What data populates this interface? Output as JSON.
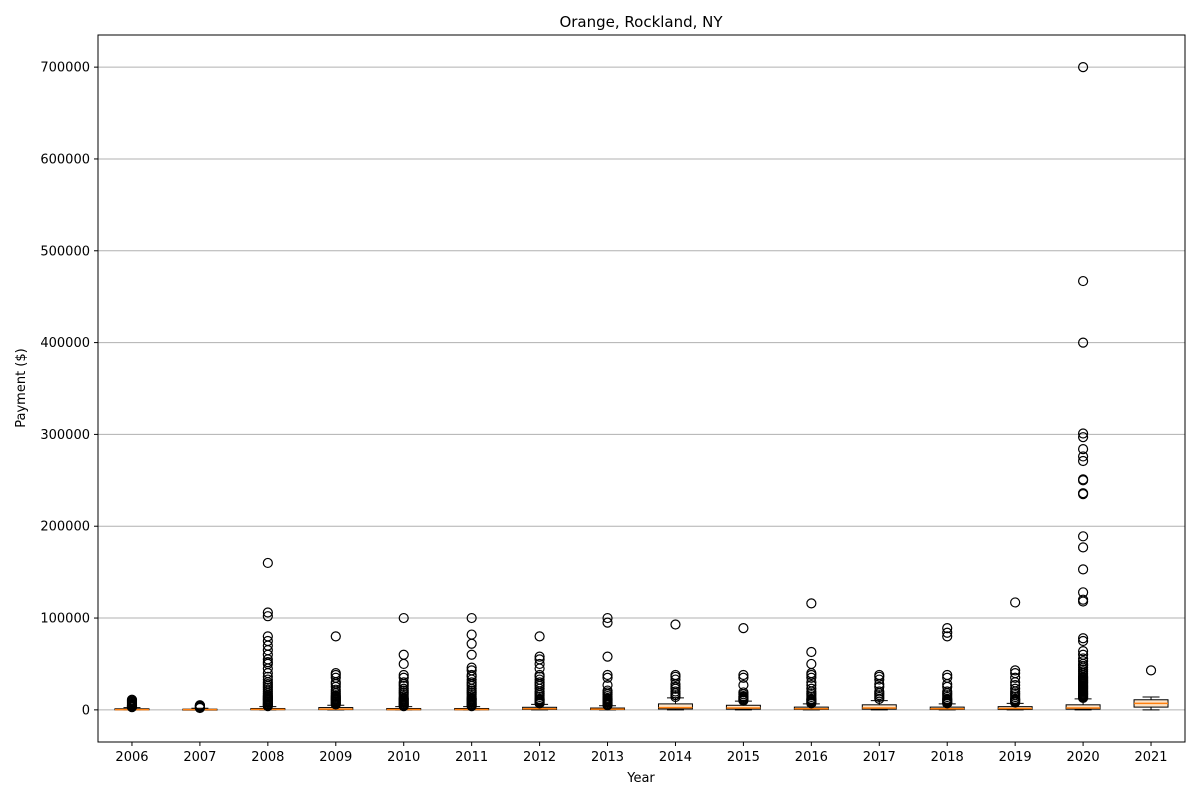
{
  "chart_data": {
    "type": "box",
    "title": "Orange, Rockland, NY",
    "xlabel": "Year",
    "ylabel": "Payment ($)",
    "ylim": [
      -35000,
      735000
    ],
    "grid": "y",
    "y_ticks": [
      0,
      100000,
      200000,
      300000,
      400000,
      500000,
      600000,
      700000
    ],
    "y_tick_labels": [
      "0",
      "100000",
      "200000",
      "300000",
      "400000",
      "500000",
      "600000",
      "700000"
    ],
    "categories": [
      "2006",
      "2007",
      "2008",
      "2009",
      "2010",
      "2011",
      "2012",
      "2013",
      "2014",
      "2015",
      "2016",
      "2017",
      "2018",
      "2019",
      "2020",
      "2021"
    ],
    "boxes": [
      {
        "year": "2006",
        "whisker_low": 0,
        "q1": 100,
        "median": 300,
        "q3": 1200,
        "whisker_high": 2500,
        "outliers": [
          3000,
          3500,
          4000,
          4500,
          5000,
          6000,
          7000,
          8000,
          9000,
          10000,
          11000
        ]
      },
      {
        "year": "2007",
        "whisker_low": 0,
        "q1": 100,
        "median": 300,
        "q3": 800,
        "whisker_high": 1800,
        "outliers": [
          2000,
          2500,
          3000,
          3500,
          4000,
          4500,
          5000
        ]
      },
      {
        "year": "2008",
        "whisker_low": 0,
        "q1": 200,
        "median": 500,
        "q3": 1500,
        "whisker_high": 3500,
        "outliers": [
          4000,
          5000,
          6000,
          7000,
          8000,
          9000,
          10000,
          11000,
          12000,
          13000,
          14000,
          15000,
          16000,
          18000,
          20000,
          22000,
          24000,
          26000,
          28000,
          30000,
          33000,
          36000,
          40000,
          45000,
          50000,
          52000,
          55000,
          60000,
          65000,
          70000,
          75000,
          80000,
          102000,
          106000,
          160000
        ]
      },
      {
        "year": "2009",
        "whisker_low": 0,
        "q1": 300,
        "median": 800,
        "q3": 2500,
        "whisker_high": 5000,
        "outliers": [
          6000,
          7000,
          8000,
          9000,
          10000,
          11000,
          12000,
          13000,
          14000,
          15000,
          16000,
          18000,
          20000,
          22000,
          25000,
          28000,
          30000,
          35000,
          38000,
          40000,
          80000
        ]
      },
      {
        "year": "2010",
        "whisker_low": 0,
        "q1": 100,
        "median": 400,
        "q3": 1500,
        "whisker_high": 3500,
        "outliers": [
          4000,
          5000,
          6000,
          7000,
          8000,
          9000,
          10000,
          11000,
          12000,
          13000,
          15000,
          17000,
          19000,
          21000,
          23000,
          26000,
          28000,
          30000,
          35000,
          38000,
          50000,
          60000,
          100000
        ]
      },
      {
        "year": "2011",
        "whisker_low": 0,
        "q1": 100,
        "median": 400,
        "q3": 1500,
        "whisker_high": 3500,
        "outliers": [
          4000,
          5000,
          6000,
          7000,
          8000,
          9000,
          10000,
          11000,
          12000,
          13000,
          15000,
          17000,
          19000,
          21000,
          23000,
          26000,
          28000,
          30000,
          33000,
          36000,
          38000,
          43000,
          46000,
          60000,
          72000,
          82000,
          100000
        ]
      },
      {
        "year": "2012",
        "whisker_low": 0,
        "q1": 500,
        "median": 1200,
        "q3": 2800,
        "whisker_high": 6000,
        "outliers": [
          7000,
          8000,
          9000,
          10000,
          11000,
          12000,
          14000,
          16000,
          18000,
          20000,
          23000,
          26000,
          28000,
          30000,
          33000,
          36000,
          38000,
          45000,
          50000,
          55000,
          58000,
          80000
        ]
      },
      {
        "year": "2013",
        "whisker_low": 0,
        "q1": 300,
        "median": 800,
        "q3": 2000,
        "whisker_high": 4500,
        "outliers": [
          5000,
          6000,
          7000,
          8000,
          9000,
          10000,
          11000,
          12000,
          13000,
          15000,
          17000,
          19000,
          21000,
          27000,
          35000,
          38000,
          58000,
          95000,
          100000
        ]
      },
      {
        "year": "2014",
        "whisker_low": 0,
        "q1": 1000,
        "median": 2500,
        "q3": 6500,
        "whisker_high": 13000,
        "outliers": [
          14000,
          16000,
          18000,
          20000,
          23000,
          25000,
          28000,
          33000,
          36000,
          38000,
          93000
        ]
      },
      {
        "year": "2015",
        "whisker_low": 0,
        "q1": 800,
        "median": 2000,
        "q3": 5000,
        "whisker_high": 9500,
        "outliers": [
          10000,
          11000,
          12000,
          13000,
          14000,
          15000,
          17000,
          19000,
          27000,
          35000,
          38000,
          89000
        ]
      },
      {
        "year": "2016",
        "whisker_low": 0,
        "q1": 500,
        "median": 1200,
        "q3": 3000,
        "whisker_high": 6500,
        "outliers": [
          7000,
          8000,
          9000,
          10000,
          11000,
          12000,
          14000,
          16000,
          18000,
          20000,
          23000,
          27000,
          30000,
          35000,
          38000,
          40000,
          50000,
          63000,
          116000
        ]
      },
      {
        "year": "2017",
        "whisker_low": 0,
        "q1": 800,
        "median": 2000,
        "q3": 5500,
        "whisker_high": 10000,
        "outliers": [
          12000,
          14000,
          16000,
          18000,
          20000,
          25000,
          28000,
          33000,
          36000,
          38000
        ]
      },
      {
        "year": "2018",
        "whisker_low": 0,
        "q1": 500,
        "median": 1200,
        "q3": 3000,
        "whisker_high": 6500,
        "outliers": [
          7000,
          8000,
          9000,
          10000,
          11000,
          12000,
          14000,
          16000,
          18000,
          20000,
          25000,
          28000,
          35000,
          38000,
          80000,
          84000,
          89000
        ]
      },
      {
        "year": "2019",
        "whisker_low": 0,
        "q1": 500,
        "median": 1500,
        "q3": 3500,
        "whisker_high": 7000,
        "outliers": [
          8000,
          9000,
          10000,
          11000,
          12000,
          14000,
          16000,
          18000,
          20000,
          23000,
          27000,
          30000,
          35000,
          40000,
          43000,
          117000
        ]
      },
      {
        "year": "2020",
        "whisker_low": 0,
        "q1": 800,
        "median": 2000,
        "q3": 5500,
        "whisker_high": 12000,
        "outliers": [
          13000,
          14000,
          15000,
          16000,
          17000,
          18000,
          19000,
          20000,
          21000,
          22000,
          23000,
          24000,
          25000,
          26000,
          27000,
          28000,
          29000,
          30000,
          31000,
          32000,
          33000,
          34000,
          35000,
          36000,
          38000,
          40000,
          42000,
          44000,
          46000,
          48000,
          50000,
          53000,
          56000,
          60000,
          64000,
          75000,
          78000,
          118000,
          120000,
          128000,
          153000,
          177000,
          189000,
          235000,
          236000,
          250000,
          251000,
          271000,
          276000,
          284000,
          297000,
          301000,
          400000,
          467000,
          700000
        ]
      },
      {
        "year": "2021",
        "whisker_low": 0,
        "q1": 3000,
        "median": 7000,
        "q3": 11000,
        "whisker_high": 14000,
        "outliers": [
          43000
        ]
      }
    ],
    "colors": {
      "box_edge": "#000000",
      "box_fill": "#fde4c8",
      "median": "#ff7f0e",
      "grid": "#b0b0b0",
      "outlier": "#000000"
    }
  }
}
